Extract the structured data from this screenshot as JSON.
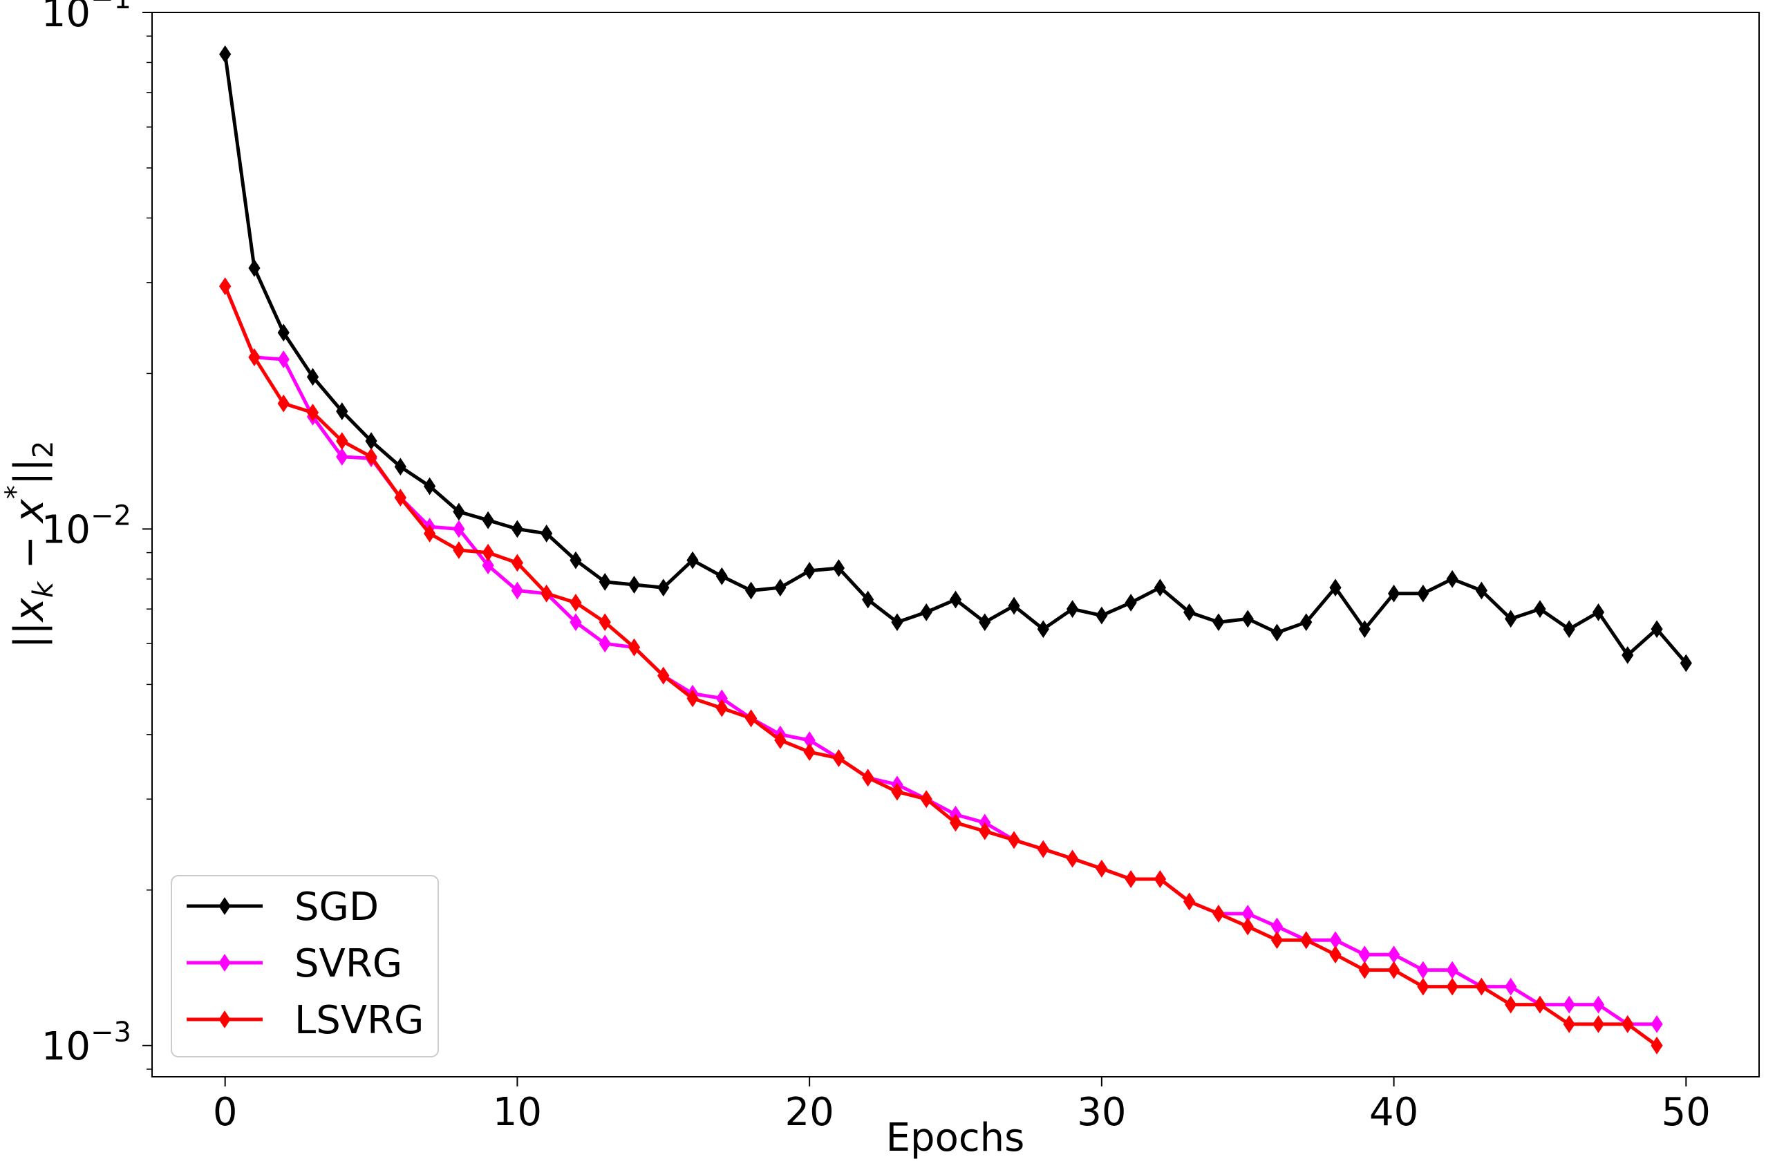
{
  "chart_data": {
    "type": "line",
    "title": "",
    "xlabel": "Epochs",
    "ylabel": "||x_k − x*||_2",
    "yscale": "log",
    "xlim": [
      -2.5,
      52.5
    ],
    "ylim": [
      0.00087,
      0.1
    ],
    "xticks": [
      0,
      10,
      20,
      30,
      40,
      50
    ],
    "xtick_labels": [
      "0",
      "10",
      "20",
      "30",
      "40",
      "50"
    ],
    "yticks": [
      0.001,
      0.01,
      0.1
    ],
    "ytick_labels": [
      {
        "base": "10",
        "exp": "−3"
      },
      {
        "base": "10",
        "exp": "−2"
      },
      {
        "base": "10",
        "exp": "−1"
      }
    ],
    "grid": false,
    "legend_position": "lower-left",
    "marker": "diamond",
    "series": [
      {
        "name": "SGD",
        "color": "#000000",
        "x": [
          0,
          1,
          2,
          3,
          4,
          5,
          6,
          7,
          8,
          9,
          10,
          11,
          12,
          13,
          14,
          15,
          16,
          17,
          18,
          19,
          20,
          21,
          22,
          23,
          24,
          25,
          26,
          27,
          28,
          29,
          30,
          31,
          32,
          33,
          34,
          35,
          36,
          37,
          38,
          39,
          40,
          41,
          42,
          43,
          44,
          45,
          46,
          47,
          48,
          49,
          50
        ],
        "values": [
          0.083,
          0.032,
          0.024,
          0.0197,
          0.0169,
          0.0148,
          0.0132,
          0.0121,
          0.0108,
          0.0104,
          0.01,
          0.0098,
          0.0087,
          0.0079,
          0.0078,
          0.0077,
          0.0087,
          0.0081,
          0.0076,
          0.0077,
          0.0083,
          0.0084,
          0.0073,
          0.0066,
          0.0069,
          0.0073,
          0.0066,
          0.0071,
          0.0064,
          0.007,
          0.0068,
          0.0072,
          0.0077,
          0.0069,
          0.0066,
          0.0067,
          0.0063,
          0.0066,
          0.0077,
          0.0064,
          0.0075,
          0.0075,
          0.008,
          0.0076,
          0.0067,
          0.007,
          0.0064,
          0.0069,
          0.0057,
          0.0064,
          0.0055
        ]
      },
      {
        "name": "SVRG",
        "color": "#ff00ff",
        "x": [
          0,
          1,
          2,
          3,
          4,
          5,
          6,
          7,
          8,
          9,
          10,
          11,
          12,
          13,
          14,
          15,
          16,
          17,
          18,
          19,
          20,
          21,
          22,
          23,
          24,
          25,
          26,
          27,
          28,
          29,
          30,
          31,
          32,
          33,
          34,
          35,
          36,
          37,
          38,
          39,
          40,
          41,
          42,
          43,
          44,
          45,
          46,
          47,
          48,
          49
        ],
        "values": [
          0.0295,
          0.0215,
          0.0213,
          0.0165,
          0.0138,
          0.0137,
          0.0115,
          0.0101,
          0.01,
          0.0085,
          0.0076,
          0.0075,
          0.0066,
          0.006,
          0.0059,
          0.0052,
          0.0048,
          0.0047,
          0.0043,
          0.004,
          0.0039,
          0.0036,
          0.0033,
          0.0032,
          0.003,
          0.0028,
          0.0027,
          0.0025,
          0.0024,
          0.0023,
          0.0022,
          0.0021,
          0.0021,
          0.0019,
          0.0018,
          0.0018,
          0.0017,
          0.0016,
          0.0016,
          0.0015,
          0.0015,
          0.0014,
          0.0014,
          0.0013,
          0.0013,
          0.0012,
          0.0012,
          0.0012,
          0.0011,
          0.0011
        ]
      },
      {
        "name": "LSVRG",
        "color": "#ff0000",
        "x": [
          0,
          1,
          2,
          3,
          4,
          5,
          6,
          7,
          8,
          9,
          10,
          11,
          12,
          13,
          14,
          15,
          16,
          17,
          18,
          19,
          20,
          21,
          22,
          23,
          24,
          25,
          26,
          27,
          28,
          29,
          30,
          31,
          32,
          33,
          34,
          35,
          36,
          37,
          38,
          39,
          40,
          41,
          42,
          43,
          44,
          45,
          46,
          47,
          48,
          49
        ],
        "values": [
          0.0295,
          0.0215,
          0.0175,
          0.0168,
          0.0148,
          0.0138,
          0.0115,
          0.0098,
          0.0091,
          0.009,
          0.0086,
          0.0075,
          0.0072,
          0.0066,
          0.0059,
          0.0052,
          0.0047,
          0.0045,
          0.0043,
          0.0039,
          0.0037,
          0.0036,
          0.0033,
          0.0031,
          0.003,
          0.0027,
          0.0026,
          0.0025,
          0.0024,
          0.0023,
          0.0022,
          0.0021,
          0.0021,
          0.0019,
          0.0018,
          0.0017,
          0.0016,
          0.0016,
          0.0015,
          0.0014,
          0.0014,
          0.0013,
          0.0013,
          0.0013,
          0.0012,
          0.0012,
          0.0011,
          0.0011,
          0.0011,
          0.001
        ]
      }
    ]
  }
}
